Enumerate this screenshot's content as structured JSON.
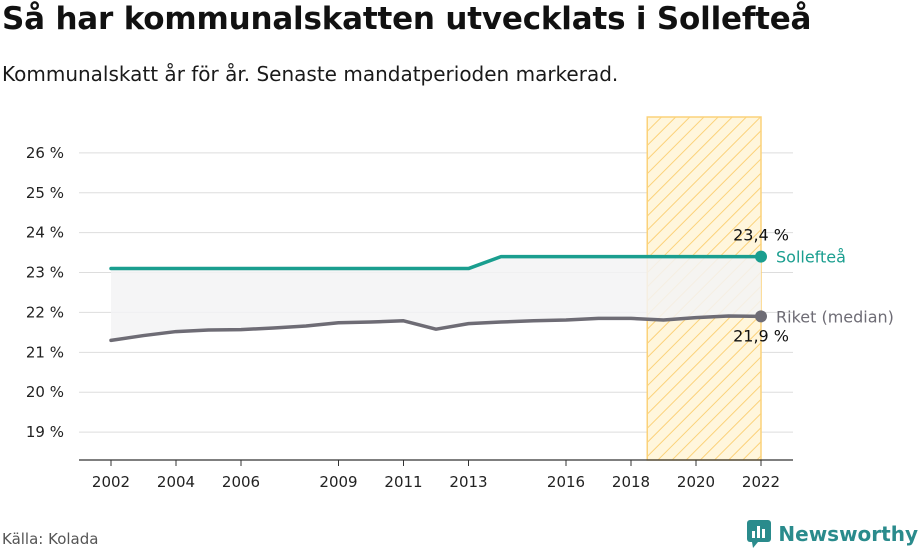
{
  "title": "Så har kommunalskatten utvecklats i Sollefteå",
  "subtitle": "Kommunalskatt år för år. Senaste mandatperioden markerad.",
  "source": "Källa: Kolada",
  "brand": "Newsworthy",
  "colors": {
    "primary": "#1a9e8f",
    "secondary": "#6e6c75",
    "highlight_fill": "#fff6dc",
    "highlight_hatch": "#fbd27a",
    "gap_fill": "#f3f3f4",
    "grid": "#dddddd",
    "brand": "#2a8b8c"
  },
  "chart_data": {
    "type": "line",
    "x": [
      2002,
      2003,
      2004,
      2005,
      2006,
      2007,
      2008,
      2009,
      2010,
      2011,
      2012,
      2013,
      2014,
      2015,
      2016,
      2017,
      2018,
      2019,
      2020,
      2021,
      2022
    ],
    "series": [
      {
        "name": "Sollefteå",
        "values": [
          23.1,
          23.1,
          23.1,
          23.1,
          23.1,
          23.1,
          23.1,
          23.1,
          23.1,
          23.1,
          23.1,
          23.1,
          23.4,
          23.4,
          23.4,
          23.4,
          23.4,
          23.4,
          23.4,
          23.4,
          23.4
        ],
        "end_label": "23,4 %"
      },
      {
        "name": "Riket (median)",
        "values": [
          21.3,
          21.42,
          21.52,
          21.56,
          21.57,
          21.61,
          21.66,
          21.74,
          21.76,
          21.79,
          21.58,
          21.72,
          21.76,
          21.79,
          21.81,
          21.85,
          21.85,
          21.81,
          21.87,
          21.91,
          21.9
        ],
        "end_label": "21,9 %"
      }
    ],
    "highlight": {
      "from": 2018.5,
      "to": 2022
    },
    "ylim": [
      18.3,
      26.9
    ],
    "yticks": [
      19,
      20,
      21,
      22,
      23,
      24,
      25,
      26
    ],
    "ytick_labels": [
      "19 %",
      "20 %",
      "21 %",
      "22 %",
      "23 %",
      "24 %",
      "25 %",
      "26 %"
    ],
    "xticks": [
      2002,
      2004,
      2006,
      2009,
      2011,
      2013,
      2016,
      2018,
      2020,
      2022
    ],
    "xtick_labels": [
      "2002",
      "2004",
      "2006",
      "2009",
      "2011",
      "2013",
      "2016",
      "2018",
      "2020",
      "2022"
    ],
    "xlabel": "",
    "ylabel": "",
    "grid": true
  }
}
